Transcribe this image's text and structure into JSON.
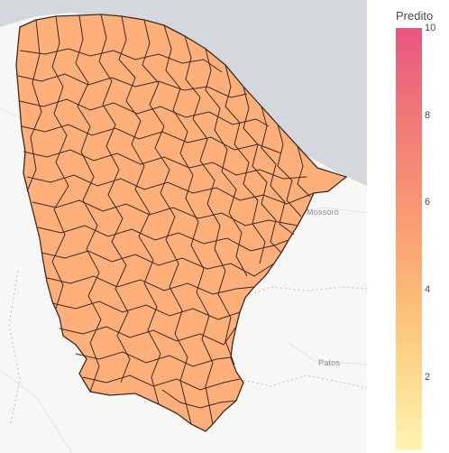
{
  "map": {
    "places": [
      {
        "name": "Mossoró"
      },
      {
        "name": "Patos"
      }
    ],
    "region_fill": "#ffb07a",
    "region_stroke": "#3a2a22",
    "sea_color": "#d4d8dc",
    "land_color": "#f7f7f5"
  },
  "colorbar": {
    "title": "Predito",
    "ticks": [
      "10",
      "8",
      "6",
      "4",
      "2"
    ],
    "range": [
      0,
      10
    ]
  }
}
